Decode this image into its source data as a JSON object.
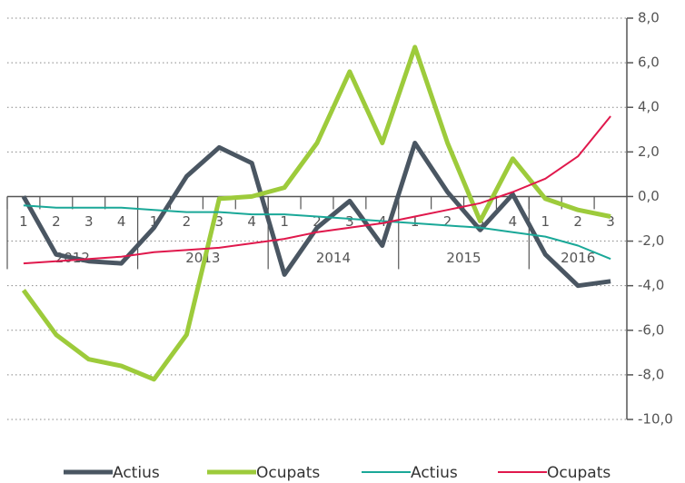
{
  "chart_data": {
    "type": "line",
    "categories": [
      "1",
      "2",
      "3",
      "4",
      "1",
      "2",
      "3",
      "4",
      "1",
      "2",
      "3",
      "4",
      "1",
      "2",
      "3",
      "4",
      "1",
      "2",
      "3"
    ],
    "groups": [
      {
        "label": "2012",
        "span": 4
      },
      {
        "label": "2013",
        "span": 4
      },
      {
        "label": "2014",
        "span": 4
      },
      {
        "label": "2015",
        "span": 4
      },
      {
        "label": "2016",
        "span": 3
      }
    ],
    "series": [
      {
        "name": "Actius",
        "color": "#4a5662",
        "width": 5,
        "values": [
          0.0,
          -2.6,
          -2.9,
          -3.0,
          -1.4,
          0.9,
          2.2,
          1.5,
          -3.5,
          -1.4,
          -0.2,
          -2.2,
          2.4,
          0.2,
          -1.5,
          0.1,
          -2.6,
          -4.0,
          -3.8
        ]
      },
      {
        "name": "Ocupats",
        "color": "#9dcb3b",
        "width": 5,
        "values": [
          -4.2,
          -6.2,
          -7.3,
          -7.6,
          -8.2,
          -6.2,
          -0.1,
          0.0,
          0.4,
          2.4,
          5.6,
          2.4,
          6.7,
          2.4,
          -1.1,
          1.7,
          -0.1,
          -0.6,
          -0.9
        ]
      },
      {
        "name": "Actius",
        "color": "#1aa898",
        "width": 2,
        "values": [
          -0.4,
          -0.5,
          -0.5,
          -0.5,
          -0.6,
          -0.7,
          -0.7,
          -0.8,
          -0.8,
          -0.9,
          -1.0,
          -1.1,
          -1.2,
          -1.3,
          -1.4,
          -1.6,
          -1.8,
          -2.2,
          -2.8
        ]
      },
      {
        "name": "Ocupats",
        "color": "#e0184c",
        "width": 2,
        "values": [
          -3.0,
          -2.9,
          -2.8,
          -2.7,
          -2.5,
          -2.4,
          -2.3,
          -2.1,
          -1.9,
          -1.6,
          -1.4,
          -1.2,
          -0.9,
          -0.6,
          -0.3,
          0.2,
          0.8,
          1.8,
          3.6
        ]
      }
    ],
    "ylim": [
      -10,
      8
    ],
    "yticks": [
      {
        "value": 8,
        "label": "8,0"
      },
      {
        "value": 6,
        "label": "6,0"
      },
      {
        "value": 4,
        "label": "4,0"
      },
      {
        "value": 2,
        "label": "2,0"
      },
      {
        "value": 0,
        "label": "0,0"
      },
      {
        "value": -2,
        "label": "-2,0"
      },
      {
        "value": -4,
        "label": "-4,0"
      },
      {
        "value": -6,
        "label": "-6,0"
      },
      {
        "value": -8,
        "label": "-8,0"
      },
      {
        "value": -10,
        "label": "-10,0"
      }
    ],
    "grid": true,
    "legend": "bottom"
  }
}
